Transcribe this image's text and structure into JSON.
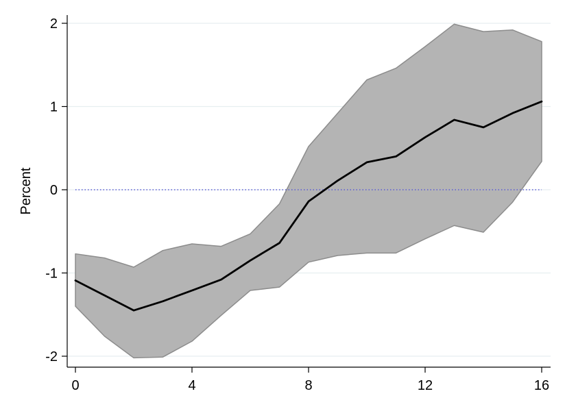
{
  "chart_data": {
    "type": "line",
    "title": "",
    "xlabel": "",
    "ylabel": "Percent",
    "xlim": [
      0,
      16
    ],
    "ylim": [
      -2,
      2
    ],
    "x_ticks": [
      0,
      4,
      8,
      12,
      16
    ],
    "y_ticks": [
      -2,
      -1,
      0,
      1,
      2
    ],
    "x_tick_labels": [
      "0",
      "4",
      "8",
      "12",
      "16"
    ],
    "y_tick_labels": [
      "-2",
      "-1",
      "0",
      "1",
      "2"
    ],
    "grid": "horizontal",
    "reference_line": {
      "y": 0,
      "style": "dotted",
      "color": "#5a5ad6"
    },
    "x": [
      0,
      1,
      2,
      3,
      4,
      5,
      6,
      7,
      8,
      9,
      10,
      11,
      12,
      13,
      14,
      15,
      16
    ],
    "series": [
      {
        "values": [
          -1.09,
          -1.27,
          -1.45,
          -1.34,
          -1.21,
          -1.08,
          -0.85,
          -0.64,
          -0.14,
          0.11,
          0.33,
          0.4,
          0.63,
          0.84,
          0.75,
          0.92,
          1.06
        ]
      }
    ],
    "band": {
      "lower": [
        -1.4,
        -1.76,
        -2.02,
        -2.01,
        -1.82,
        -1.51,
        -1.21,
        -1.17,
        -0.87,
        -0.79,
        -0.76,
        -0.76,
        -0.59,
        -0.43,
        -0.51,
        -0.15,
        0.34
      ],
      "upper": [
        -0.77,
        -0.82,
        -0.93,
        -0.73,
        -0.65,
        -0.68,
        -0.53,
        -0.17,
        0.52,
        0.92,
        1.32,
        1.46,
        1.72,
        1.99,
        1.9,
        1.92,
        1.78
      ]
    },
    "colors": {
      "band": "#b4b4b4",
      "band_edge": "#8c8c8c",
      "line": "#000000",
      "grid": "#e6eef0",
      "axis": "#000000"
    }
  }
}
